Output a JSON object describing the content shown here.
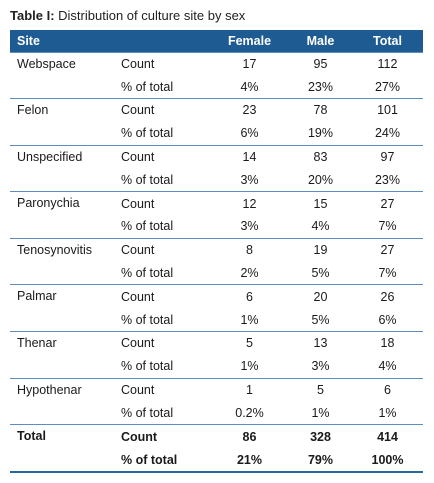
{
  "caption": {
    "label": "Table I:",
    "text": " Distribution of culture site by sex"
  },
  "columns": {
    "site": "Site",
    "female": "Female",
    "male": "Male",
    "total": "Total"
  },
  "groups": [
    {
      "site": "Webspace",
      "rows": [
        {
          "stat": "Count",
          "female": "17",
          "male": "95",
          "total": "112"
        },
        {
          "stat": "% of total",
          "female": "4%",
          "male": "23%",
          "total": "27%"
        }
      ]
    },
    {
      "site": "Felon",
      "rows": [
        {
          "stat": "Count",
          "female": "23",
          "male": "78",
          "total": "101"
        },
        {
          "stat": "% of total",
          "female": "6%",
          "male": "19%",
          "total": "24%"
        }
      ]
    },
    {
      "site": "Unspecified",
      "rows": [
        {
          "stat": "Count",
          "female": "14",
          "male": "83",
          "total": "97"
        },
        {
          "stat": "% of total",
          "female": "3%",
          "male": "20%",
          "total": "23%"
        }
      ]
    },
    {
      "site": "Paronychia",
      "rows": [
        {
          "stat": "Count",
          "female": "12",
          "male": "15",
          "total": "27"
        },
        {
          "stat": "% of total",
          "female": "3%",
          "male": "4%",
          "total": "7%"
        }
      ]
    },
    {
      "site": "Tenosynovitis",
      "rows": [
        {
          "stat": "Count",
          "female": "8",
          "male": "19",
          "total": "27"
        },
        {
          "stat": "% of total",
          "female": "2%",
          "male": "5%",
          "total": "7%"
        }
      ]
    },
    {
      "site": "Palmar",
      "rows": [
        {
          "stat": "Count",
          "female": "6",
          "male": "20",
          "total": "26"
        },
        {
          "stat": "% of total",
          "female": "1%",
          "male": "5%",
          "total": "6%"
        }
      ]
    },
    {
      "site": "Thenar",
      "rows": [
        {
          "stat": "Count",
          "female": "5",
          "male": "13",
          "total": "18"
        },
        {
          "stat": "% of total",
          "female": "1%",
          "male": "3%",
          "total": "4%"
        }
      ]
    },
    {
      "site": "Hypothenar",
      "rows": [
        {
          "stat": "Count",
          "female": "1",
          "male": "5",
          "total": "6"
        },
        {
          "stat": "% of total",
          "female": "0.2%",
          "male": "1%",
          "total": "1%"
        }
      ]
    },
    {
      "site": "Total",
      "is_total": true,
      "rows": [
        {
          "stat": "Count",
          "female": "86",
          "male": "328",
          "total": "414"
        },
        {
          "stat": "% of total",
          "female": "21%",
          "male": "79%",
          "total": "100%"
        }
      ]
    }
  ],
  "colors": {
    "header_bg": "#1f5b93",
    "header_text": "#ffffff",
    "rule": "#5d8dbd",
    "bottom_rule": "#2b65a0"
  }
}
